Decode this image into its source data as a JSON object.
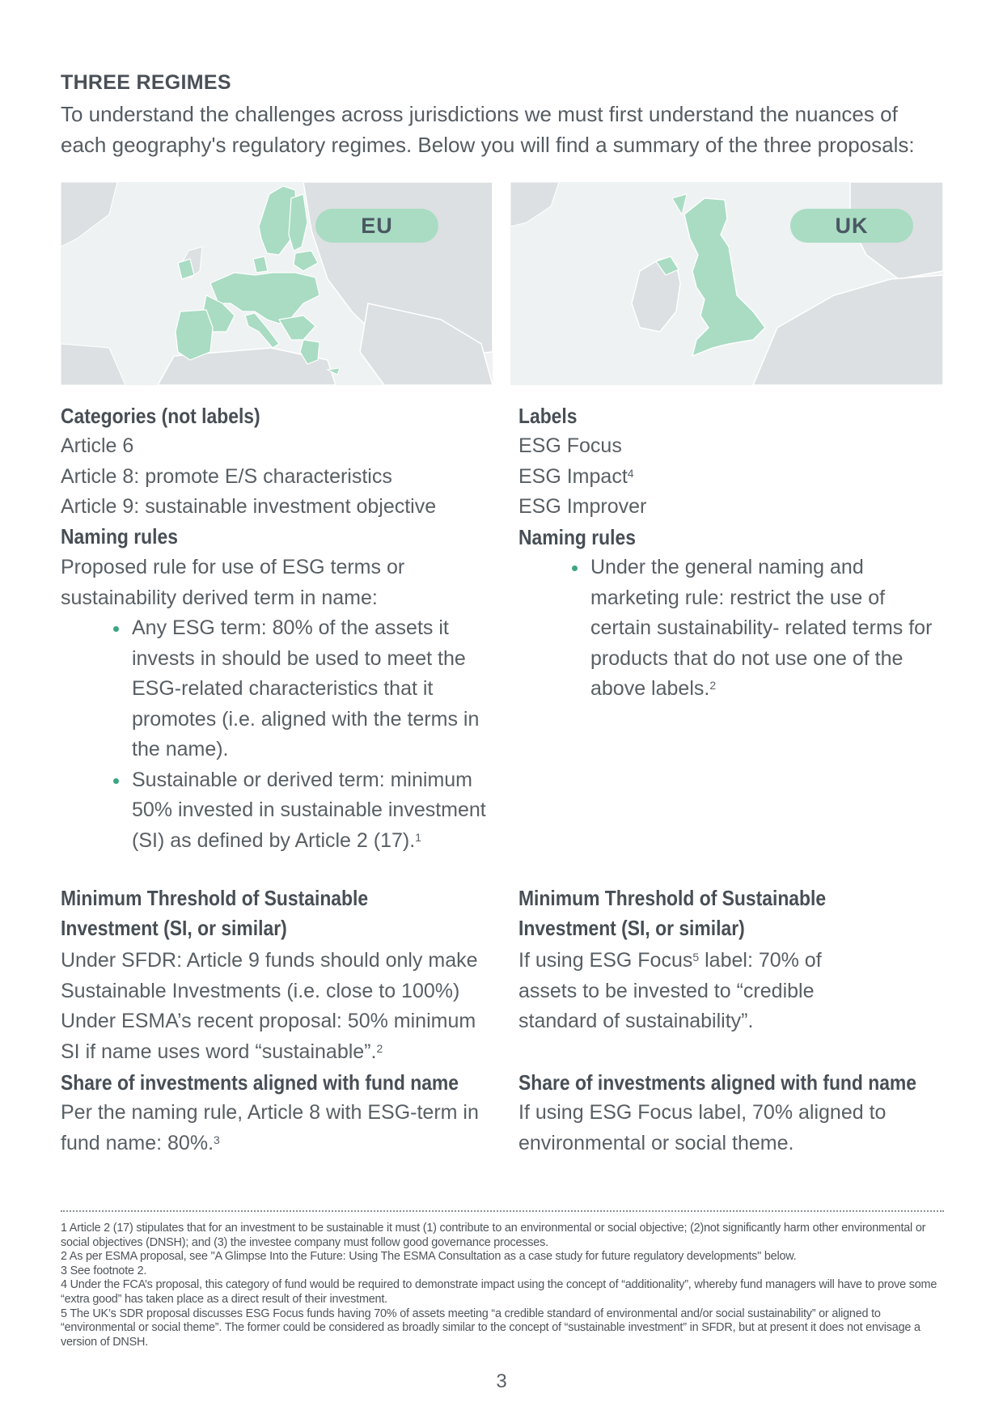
{
  "header": {
    "section_title": "THREE REGIMES",
    "intro": "To understand the challenges across jurisdictions we must first understand the nuances of each geography's regulatory regimes. Below you will find a summary of the three proposals:"
  },
  "maps": {
    "eu_label": "EU",
    "uk_label": "UK",
    "colors": {
      "highlight": "#a9dcc3",
      "land": "#dde0e2",
      "sea": "#eef2f3",
      "border": "#ffffff"
    }
  },
  "eu": {
    "categories_heading": "Categories (not labels)",
    "categories": [
      "Article 6",
      "Article 8: promote E/S characteristics",
      "Article 9: sustainable investment objective"
    ],
    "naming_heading": "Naming rules",
    "naming_intro": "Proposed rule for use of ESG terms or sustainability derived term in name:",
    "naming_bullets": [
      {
        "text": "Any ESG term: 80% of the assets it invests in should be used to meet the ESG-related characteristics that it promotes (i.e. aligned with the terms in the name).",
        "sup": ""
      },
      {
        "text": "Sustainable or derived term: minimum 50% invested in sustainable investment (SI) as defined by Article 2 (17).",
        "sup": "1"
      }
    ],
    "threshold_heading": "Minimum Threshold of Sustainable Investment (SI, or similar)",
    "threshold_text": "Under SFDR: Article 9 funds should only make Sustainable Investments (i.e. close to 100%) Under ESMA’s recent proposal: 50% minimum SI if name uses word “sustainable”.",
    "threshold_sup": "2",
    "share_heading": "Share of investments aligned with fund name",
    "share_text": "Per the naming rule, Article 8 with ESG-term in fund name: 80%.",
    "share_sup": "3"
  },
  "uk": {
    "labels_heading": "Labels",
    "labels": [
      {
        "text": "ESG Focus",
        "sup": ""
      },
      {
        "text": "ESG Impact",
        "sup": "4"
      },
      {
        "text": "ESG Improver",
        "sup": ""
      }
    ],
    "naming_heading": "Naming rules",
    "naming_bullets": [
      {
        "text": "Under the general naming and marketing rule: restrict the use of certain sustainability- related terms for products that do not use one of the above labels.",
        "sup": "2"
      }
    ],
    "threshold_heading": "Minimum Threshold of Sustainable Investment (SI, or similar)",
    "threshold_pre": "If using ESG Focus",
    "threshold_sup": "5",
    "threshold_post": " label: 70% of assets to be invested to “credible standard of sustainability”.",
    "share_heading": "Share of investments aligned with fund name",
    "share_text": "If using ESG Focus label, 70% aligned to environmental or social theme."
  },
  "footnotes": [
    "1 Article 2 (17) stipulates that for an investment to be sustainable it must (1) contribute to an environmental or social objective; (2)not significantly harm other environmental or social objectives (DNSH); and (3) the investee company must follow good governance processes.",
    "2 As per ESMA proposal, see \"A Glimpse Into the Future: Using The ESMA Consultation as a case study for future regulatory developments\" below.",
    "3 See footnote 2.",
    "4 Under the FCA’s proposal, this category of fund would be required to demonstrate impact using the concept of “additionality”, whereby fund managers will have to prove some “extra good” has taken place as a direct result of their investment.",
    "5 The UK’s SDR proposal discusses ESG Focus funds having 70% of assets meeting “a credible standard of environmental and/or social sustainability” or aligned to “environmental or social theme”. The former could be considered as broadly similar to the concept of “sustainable investment” in SFDR, but at present it does not envisage a version of DNSH."
  ],
  "page_number": "3"
}
